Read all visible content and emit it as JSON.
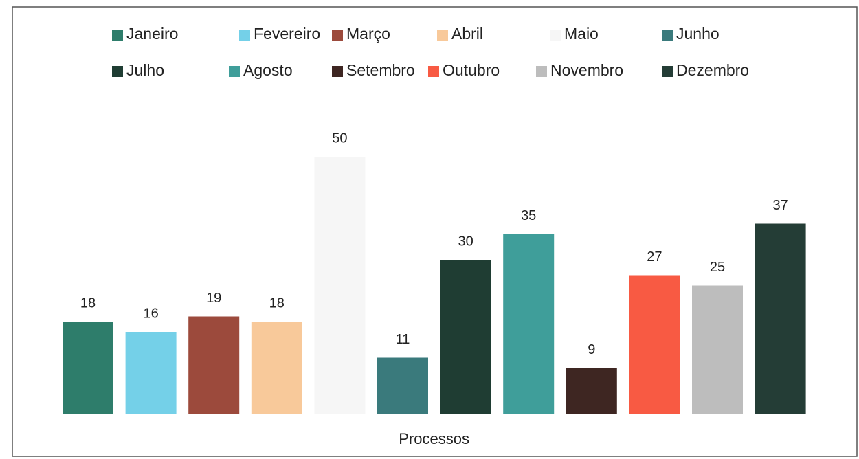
{
  "chart_data": {
    "type": "bar",
    "categories": [
      "Processos"
    ],
    "series": [
      {
        "name": "Janeiro",
        "color": "#2e7d6b",
        "values": [
          18
        ]
      },
      {
        "name": "Fevereiro",
        "color": "#74d0e8",
        "values": [
          16
        ]
      },
      {
        "name": "Março",
        "color": "#9c4a3c",
        "values": [
          19
        ]
      },
      {
        "name": "Abril",
        "color": "#f8c99a",
        "values": [
          18
        ]
      },
      {
        "name": "Maio",
        "color": "#f6f6f6",
        "values": [
          50
        ]
      },
      {
        "name": "Junho",
        "color": "#3a7a7c",
        "values": [
          11
        ]
      },
      {
        "name": "Julho",
        "color": "#1f3d33",
        "values": [
          30
        ]
      },
      {
        "name": "Agosto",
        "color": "#3f9e9a",
        "values": [
          35
        ]
      },
      {
        "name": "Setembro",
        "color": "#3e2622",
        "values": [
          9
        ]
      },
      {
        "name": "Outubro",
        "color": "#f85a43",
        "values": [
          27
        ]
      },
      {
        "name": "Novembro",
        "color": "#bdbdbd",
        "values": [
          25
        ]
      },
      {
        "name": "Dezembro",
        "color": "#243d36",
        "values": [
          37
        ]
      }
    ],
    "ylim": [
      0,
      60
    ],
    "legend": "top"
  }
}
